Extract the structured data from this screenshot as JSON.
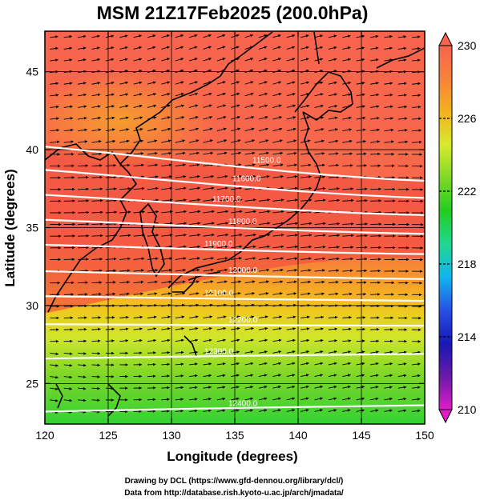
{
  "chart_data": {
    "type": "heatmap",
    "title": "MSM 21Z17Feb2025 (200.0hPa)",
    "xlabel": "Longitude (degrees)",
    "ylabel": "Latitude  (degrees)",
    "xlim": [
      120,
      150
    ],
    "ylim": [
      22.4,
      47.6
    ],
    "x_ticks": [
      120,
      125,
      130,
      135,
      140,
      145,
      150
    ],
    "y_ticks": [
      25,
      30,
      35,
      40,
      45
    ],
    "grid": true,
    "colorbar": {
      "range": [
        210,
        230
      ],
      "ticks": [
        210,
        214,
        218,
        222,
        226,
        230
      ],
      "colors": [
        "#e01cc8",
        "#6a1aa8",
        "#1818b4",
        "#2850e6",
        "#10b4f0",
        "#20d890",
        "#22cc22",
        "#7ed826",
        "#d8ea2c",
        "#f2b21e",
        "#f8823c",
        "#f8644e"
      ]
    },
    "contours": {
      "color": "#ffffff",
      "lines": [
        {
          "value": 11500,
          "label": "11500.0",
          "lat0": 40.2,
          "lat1": 38.0
        },
        {
          "value": 11600,
          "label": "11600.0",
          "lat0": 38.7,
          "lat1": 36.9
        },
        {
          "value": 11700,
          "label": "11700.0",
          "lat0": 37.1,
          "lat1": 35.8
        },
        {
          "value": 11800,
          "label": "11800.0",
          "lat0": 35.5,
          "lat1": 34.6
        },
        {
          "value": 11900,
          "label": "11900.0",
          "lat0": 33.9,
          "lat1": 33.3
        },
        {
          "value": 12000,
          "label": "12000.0",
          "lat0": 32.2,
          "lat1": 31.7
        },
        {
          "value": 12100,
          "label": "12100.0",
          "lat0": 30.6,
          "lat1": 30.3
        },
        {
          "value": 12200,
          "label": "12200.0",
          "lat0": 28.8,
          "lat1": 28.7
        },
        {
          "value": 12300,
          "label": "12300.0",
          "lat0": 26.6,
          "lat1": 26.9
        },
        {
          "value": 12400,
          "label": "12400.0",
          "lat0": 23.2,
          "lat1": 23.6
        }
      ]
    },
    "wind_vectors": "westerly"
  },
  "credits": {
    "line1": "Drawing by DCL (https://www.gfd-dennou.org/library/dcl/)",
    "line2": "Data from http://database.rish.kyoto-u.ac.jp/arch/jmadata/"
  }
}
